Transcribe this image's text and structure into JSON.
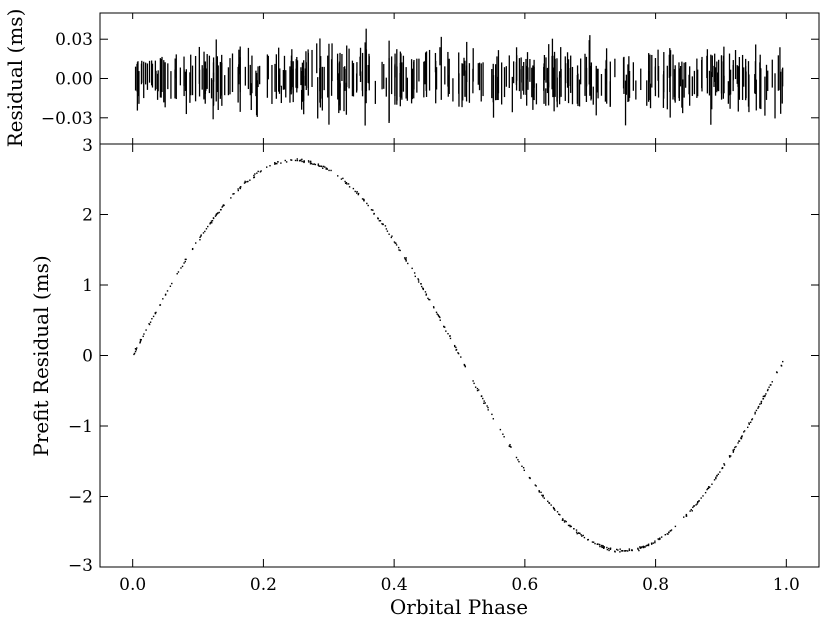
{
  "chart_data": [
    {
      "type": "scatter",
      "title": "",
      "xlabel": "",
      "ylabel": "Residual (ms)",
      "xlim": [
        -0.05,
        1.05
      ],
      "ylim": [
        -0.05,
        0.05
      ],
      "yticks": [
        -0.03,
        0.0,
        0.03
      ],
      "ytick_labels": [
        "−0.03",
        "0.00",
        "0.03"
      ],
      "grid": false,
      "marker": "error-bar segments",
      "n_points": 400,
      "phase_range": [
        0.0,
        0.995
      ],
      "scatter_rms": 0.012,
      "typical_error": 0.012,
      "notes": "Residuals after fit, scattered about zero with vertical error bars"
    },
    {
      "type": "scatter",
      "title": "",
      "xlabel": "Orbital Phase",
      "ylabel": "Prefit Residual (ms)",
      "xlim": [
        -0.05,
        1.05
      ],
      "ylim": [
        -3,
        3
      ],
      "xticks": [
        0.0,
        0.2,
        0.4,
        0.6,
        0.8,
        1.0
      ],
      "xtick_labels": [
        "0.0",
        "0.2",
        "0.4",
        "0.6",
        "0.8",
        "1.0"
      ],
      "yticks": [
        -3,
        -2,
        -1,
        0,
        1,
        2,
        3
      ],
      "ytick_labels": [
        "−3",
        "−2",
        "−1",
        "0",
        "1",
        "2",
        "3"
      ],
      "grid": false,
      "marker": "small dots",
      "n_points": 500,
      "phase_range": [
        0.0,
        0.995
      ],
      "model": "sinusoid",
      "amplitude": 2.77,
      "peak_phase": 0.25,
      "trough_phase": 0.75
    }
  ]
}
